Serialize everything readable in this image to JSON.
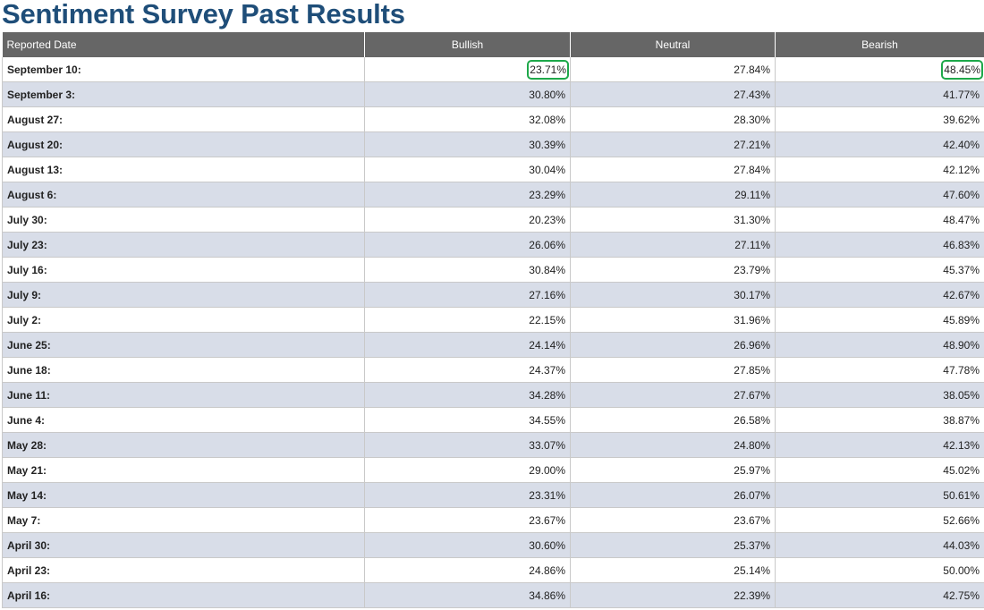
{
  "page": {
    "title": "Sentiment Survey Past Results"
  },
  "table": {
    "headers": {
      "date": "Reported Date",
      "bullish": "Bullish",
      "neutral": "Neutral",
      "bearish": "Bearish"
    },
    "rows": [
      {
        "date": "September 10:",
        "bullish": "23.71%",
        "neutral": "27.84%",
        "bearish": "48.45%"
      },
      {
        "date": "September 3:",
        "bullish": "30.80%",
        "neutral": "27.43%",
        "bearish": "41.77%"
      },
      {
        "date": "August 27:",
        "bullish": "32.08%",
        "neutral": "28.30%",
        "bearish": "39.62%"
      },
      {
        "date": "August 20:",
        "bullish": "30.39%",
        "neutral": "27.21%",
        "bearish": "42.40%"
      },
      {
        "date": "August 13:",
        "bullish": "30.04%",
        "neutral": "27.84%",
        "bearish": "42.12%"
      },
      {
        "date": "August 6:",
        "bullish": "23.29%",
        "neutral": "29.11%",
        "bearish": "47.60%"
      },
      {
        "date": "July 30:",
        "bullish": "20.23%",
        "neutral": "31.30%",
        "bearish": "48.47%"
      },
      {
        "date": "July 23:",
        "bullish": "26.06%",
        "neutral": "27.11%",
        "bearish": "46.83%"
      },
      {
        "date": "July 16:",
        "bullish": "30.84%",
        "neutral": "23.79%",
        "bearish": "45.37%"
      },
      {
        "date": "July 9:",
        "bullish": "27.16%",
        "neutral": "30.17%",
        "bearish": "42.67%"
      },
      {
        "date": "July 2:",
        "bullish": "22.15%",
        "neutral": "31.96%",
        "bearish": "45.89%"
      },
      {
        "date": "June 25:",
        "bullish": "24.14%",
        "neutral": "26.96%",
        "bearish": "48.90%"
      },
      {
        "date": "June 18:",
        "bullish": "24.37%",
        "neutral": "27.85%",
        "bearish": "47.78%"
      },
      {
        "date": "June 11:",
        "bullish": "34.28%",
        "neutral": "27.67%",
        "bearish": "38.05%"
      },
      {
        "date": "June 4:",
        "bullish": "34.55%",
        "neutral": "26.58%",
        "bearish": "38.87%"
      },
      {
        "date": "May 28:",
        "bullish": "33.07%",
        "neutral": "24.80%",
        "bearish": "42.13%"
      },
      {
        "date": "May 21:",
        "bullish": "29.00%",
        "neutral": "25.97%",
        "bearish": "45.02%"
      },
      {
        "date": "May 14:",
        "bullish": "23.31%",
        "neutral": "26.07%",
        "bearish": "50.61%"
      },
      {
        "date": "May 7:",
        "bullish": "23.67%",
        "neutral": "23.67%",
        "bearish": "52.66%"
      },
      {
        "date": "April 30:",
        "bullish": "30.60%",
        "neutral": "25.37%",
        "bearish": "44.03%"
      },
      {
        "date": "April 23:",
        "bullish": "24.86%",
        "neutral": "25.14%",
        "bearish": "50.00%"
      },
      {
        "date": "April 16:",
        "bullish": "34.86%",
        "neutral": "22.39%",
        "bearish": "42.75%"
      }
    ],
    "highlighted_cells": [
      {
        "row": 0,
        "column": "bullish"
      },
      {
        "row": 0,
        "column": "bearish"
      }
    ]
  },
  "colors": {
    "title": "#1f4e79",
    "header_bg": "#666666",
    "stripe": "#d8dde8",
    "highlight": "#1ea84a"
  }
}
